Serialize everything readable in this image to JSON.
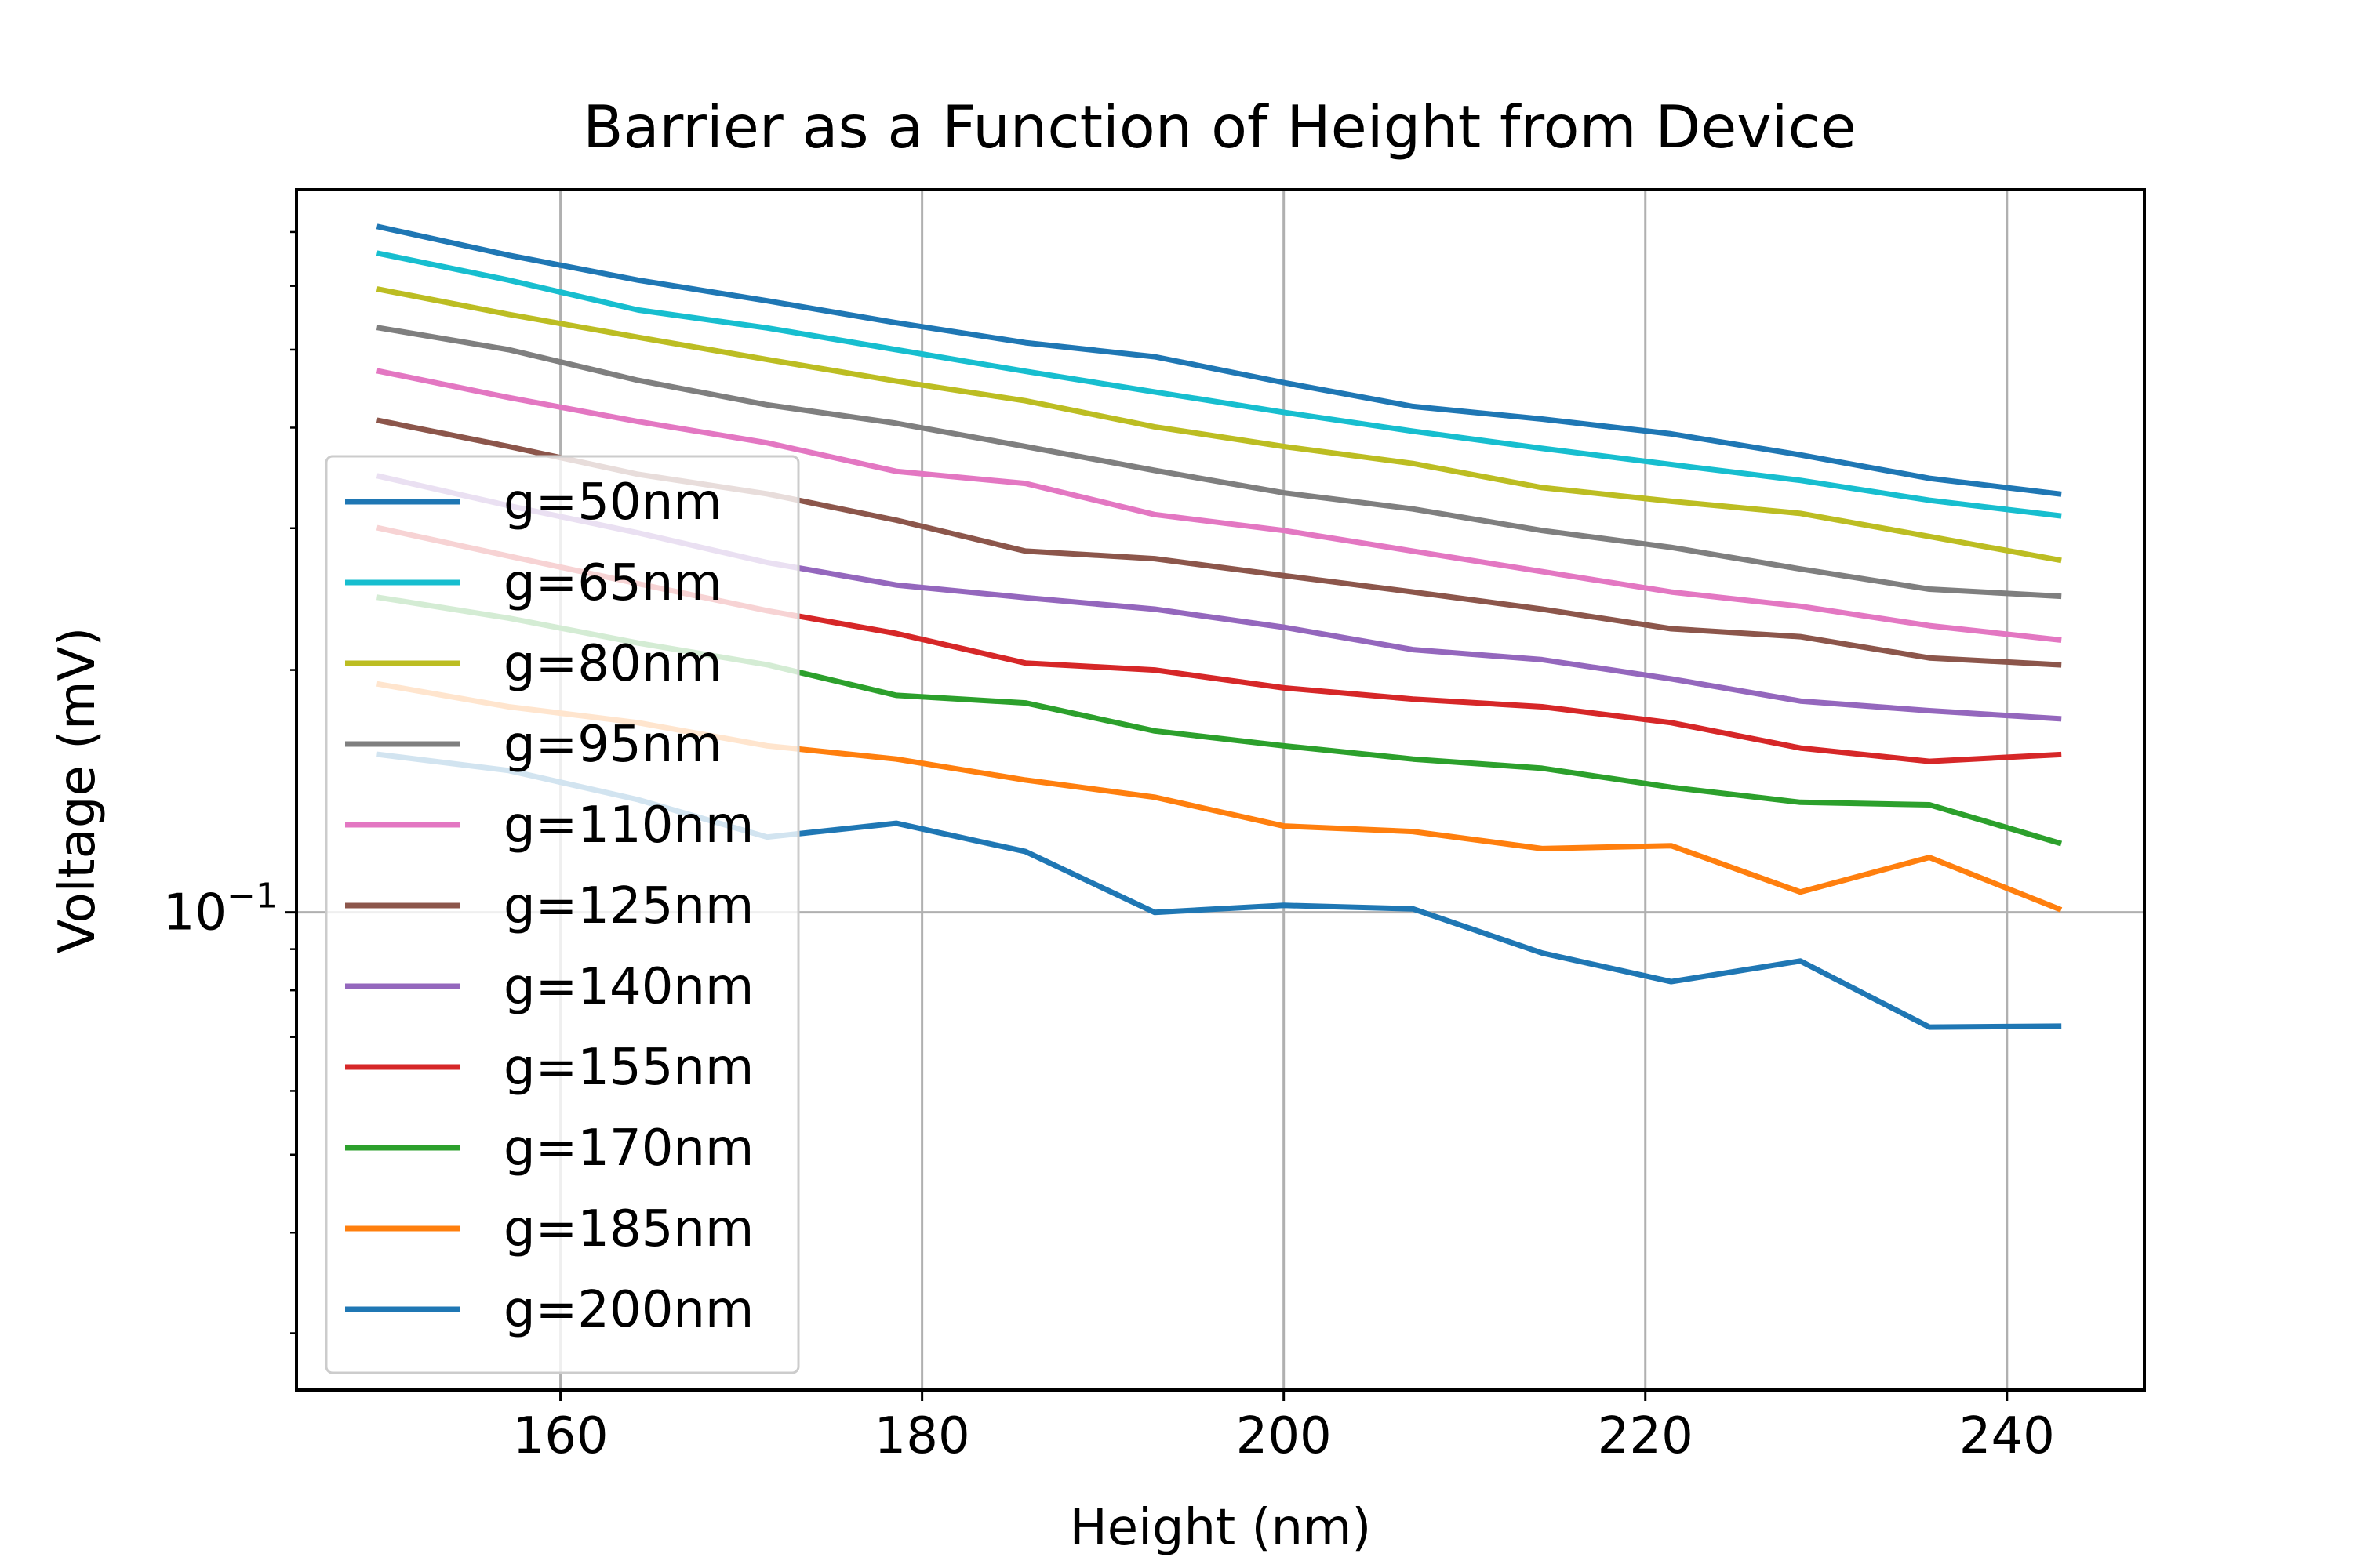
{
  "chart_data": {
    "type": "line",
    "title": "Barrier as a Function of Height from Device",
    "xlabel": "Height (nm)",
    "ylabel": "Voltage (mV)",
    "xlim": [
      145.4,
      247.6
    ],
    "ylim": [
      0.0255,
      0.79
    ],
    "yscale": "log",
    "grid": true,
    "legend_position": "center-left",
    "xticks": [
      160,
      180,
      200,
      220,
      240
    ],
    "xtick_labels": [
      "160",
      "180",
      "200",
      "220",
      "240"
    ],
    "yticks_major": [
      0.1
    ],
    "ytick_major_base": "10",
    "ytick_major_exp": "−1",
    "yticks_minor": [
      0.03,
      0.04,
      0.05,
      0.06,
      0.07,
      0.08,
      0.09,
      0.2,
      0.3,
      0.4,
      0.5,
      0.6,
      0.7
    ],
    "x": [
      150,
      157.14,
      164.29,
      171.43,
      178.57,
      185.71,
      192.86,
      200,
      207.14,
      214.29,
      221.43,
      228.57,
      235.71,
      242.86
    ],
    "series": [
      {
        "name": "g=50nm",
        "color": "#1f77b4",
        "values": [
          0.71,
          0.655,
          0.61,
          0.575,
          0.54,
          0.51,
          0.49,
          0.455,
          0.425,
          0.41,
          0.393,
          0.37,
          0.346,
          0.331
        ]
      },
      {
        "name": "g=65nm",
        "color": "#17becf",
        "values": [
          0.658,
          0.61,
          0.56,
          0.532,
          0.5,
          0.47,
          0.443,
          0.418,
          0.396,
          0.377,
          0.36,
          0.344,
          0.325,
          0.311
        ]
      },
      {
        "name": "g=80nm",
        "color": "#bcbd22",
        "values": [
          0.594,
          0.553,
          0.518,
          0.486,
          0.457,
          0.432,
          0.401,
          0.379,
          0.361,
          0.337,
          0.324,
          0.313,
          0.293,
          0.274
        ]
      },
      {
        "name": "g=95nm",
        "color": "#7f7f7f",
        "values": [
          0.532,
          0.5,
          0.458,
          0.427,
          0.405,
          0.379,
          0.354,
          0.332,
          0.317,
          0.298,
          0.284,
          0.267,
          0.252,
          0.247
        ]
      },
      {
        "name": "g=110nm",
        "color": "#e377c2",
        "values": [
          0.47,
          0.436,
          0.407,
          0.383,
          0.353,
          0.341,
          0.312,
          0.298,
          0.281,
          0.265,
          0.25,
          0.24,
          0.227,
          0.218
        ]
      },
      {
        "name": "g=125nm",
        "color": "#8c564b",
        "values": [
          0.408,
          0.379,
          0.35,
          0.331,
          0.307,
          0.281,
          0.275,
          0.262,
          0.25,
          0.238,
          0.225,
          0.22,
          0.207,
          0.203
        ]
      },
      {
        "name": "g=140nm",
        "color": "#9467bd",
        "values": [
          0.348,
          0.32,
          0.296,
          0.272,
          0.255,
          0.246,
          0.238,
          0.226,
          0.212,
          0.206,
          0.195,
          0.183,
          0.178,
          0.174
        ]
      },
      {
        "name": "g=155nm",
        "color": "#d62728",
        "values": [
          0.3,
          0.277,
          0.256,
          0.237,
          0.222,
          0.204,
          0.2,
          0.19,
          0.184,
          0.18,
          0.172,
          0.16,
          0.154,
          0.157
        ]
      },
      {
        "name": "g=170nm",
        "color": "#2ca02c",
        "values": [
          0.246,
          0.232,
          0.216,
          0.203,
          0.186,
          0.182,
          0.168,
          0.161,
          0.155,
          0.151,
          0.143,
          0.137,
          0.136,
          0.122
        ]
      },
      {
        "name": "g=185nm",
        "color": "#ff7f0e",
        "values": [
          0.192,
          0.18,
          0.172,
          0.161,
          0.155,
          0.146,
          0.139,
          0.128,
          0.126,
          0.12,
          0.121,
          0.106,
          0.117,
          0.101
        ]
      },
      {
        "name": "g=200nm",
        "color": "#1f77b4",
        "values": [
          0.157,
          0.15,
          0.138,
          0.124,
          0.129,
          0.119,
          0.1,
          0.102,
          0.101,
          0.089,
          0.082,
          0.087,
          0.072,
          0.0722
        ]
      }
    ]
  }
}
